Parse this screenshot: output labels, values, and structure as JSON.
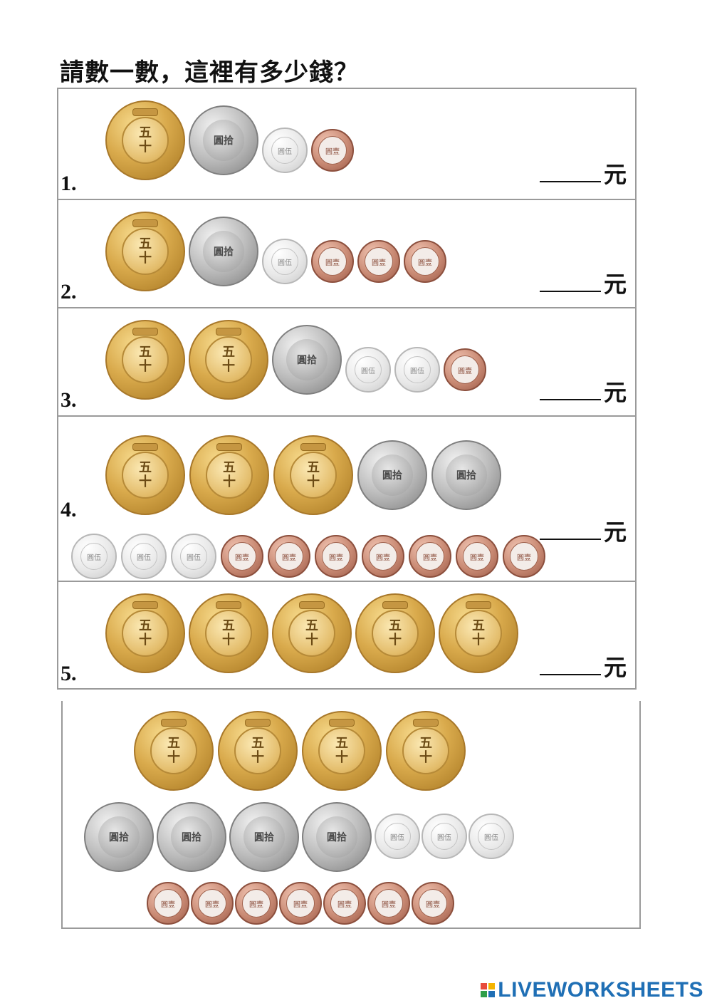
{
  "title": "請數一數，這裡有多少錢？",
  "questions": [
    {
      "number": "1.",
      "unit": "元",
      "coins": [
        "50",
        "10",
        "5",
        "1"
      ]
    },
    {
      "number": "2.",
      "unit": "元",
      "coins": [
        "50",
        "10",
        "5",
        "1",
        "1",
        "1"
      ]
    },
    {
      "number": "3.",
      "unit": "元",
      "coins": [
        "50",
        "50",
        "10",
        "5",
        "5",
        "1"
      ]
    },
    {
      "number": "4.",
      "unit": "元",
      "coins": [
        "50",
        "50",
        "50",
        "10",
        "10",
        "5",
        "5",
        "5",
        "1",
        "1",
        "1",
        "1",
        "1",
        "1",
        "1"
      ]
    },
    {
      "number": "5.",
      "unit": "元",
      "coins": [
        "50",
        "50",
        "50",
        "50",
        "50"
      ]
    }
  ],
  "bank": {
    "coins_50": 4,
    "coins_10": 4,
    "coins_5": 3,
    "coins_1": 7
  },
  "coin_text": {
    "c50": "五十",
    "c10": "圓拾",
    "c5": "圓伍",
    "c1": "圓壹"
  },
  "logo": {
    "text": "LIVEWORKSHEETS",
    "colors": [
      "#e84b3c",
      "#f4b400",
      "#2e9e49",
      "#1f6fb5"
    ]
  }
}
